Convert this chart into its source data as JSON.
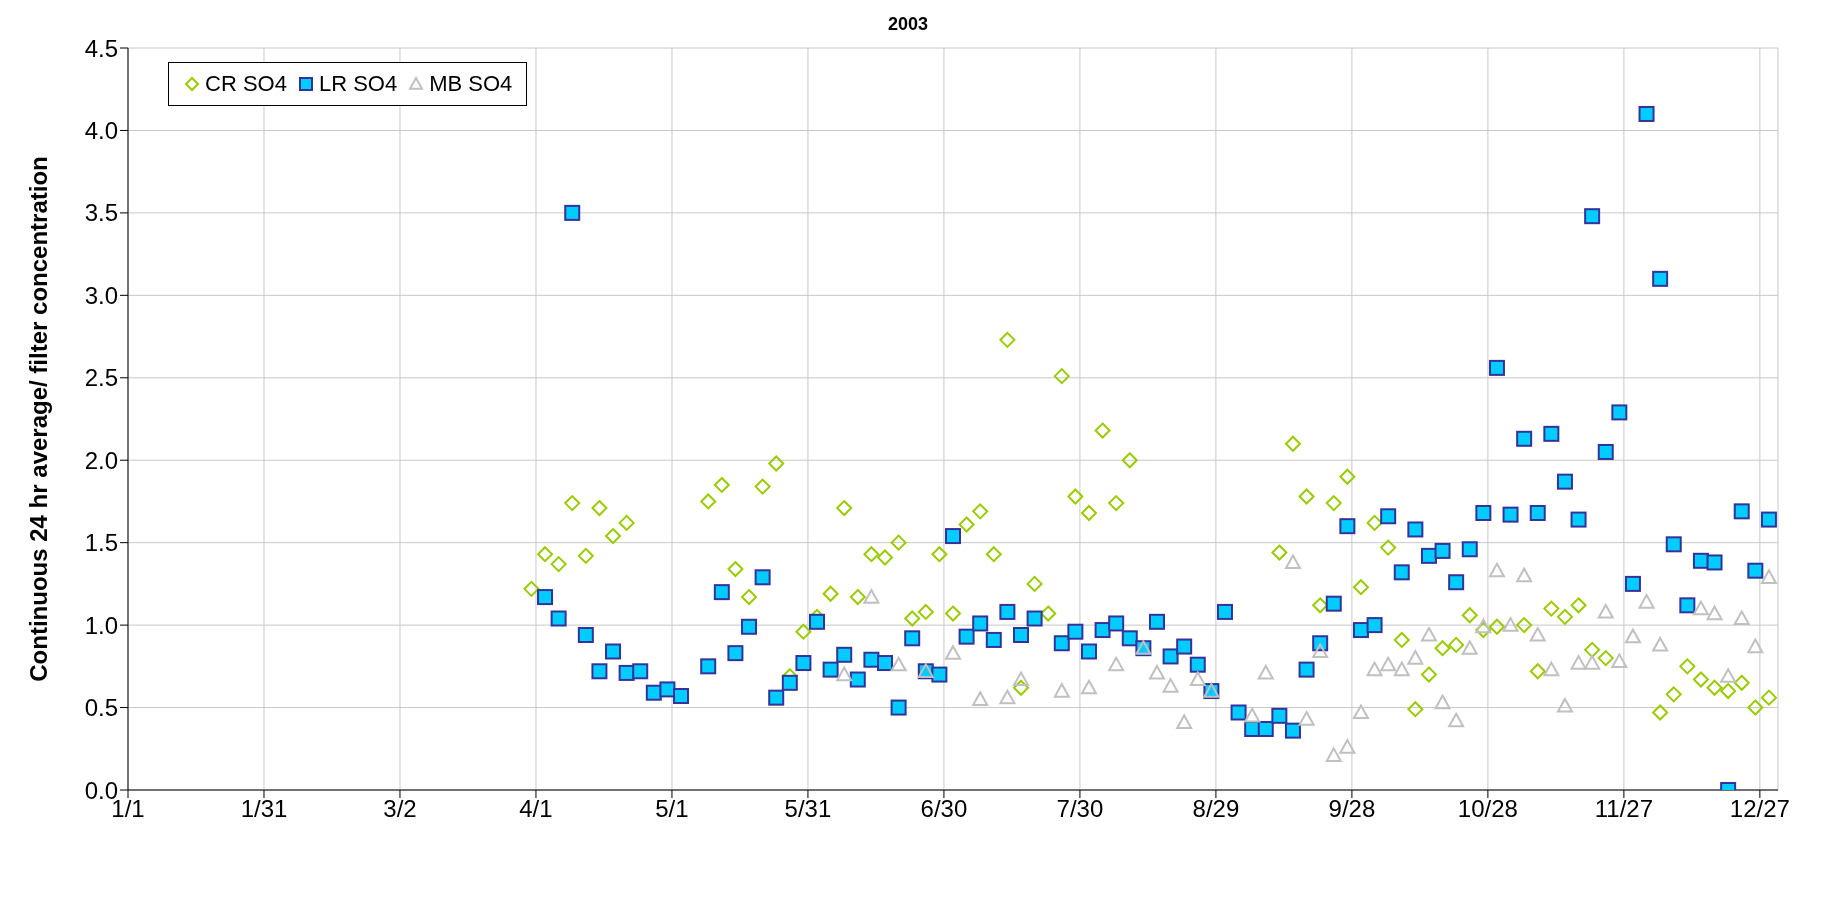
{
  "chart_data": {
    "type": "scatter",
    "title": "2003",
    "ylabel": "Continuous 24 hr average/ filter concentration",
    "xlim": [
      "2003-01-01",
      "2003-12-31"
    ],
    "xticks": [
      {
        "value": "2003-01-01",
        "label": "1/1"
      },
      {
        "value": "2003-01-31",
        "label": "1/31"
      },
      {
        "value": "2003-03-02",
        "label": "3/2"
      },
      {
        "value": "2003-04-01",
        "label": "4/1"
      },
      {
        "value": "2003-05-01",
        "label": "5/1"
      },
      {
        "value": "2003-05-31",
        "label": "5/31"
      },
      {
        "value": "2003-06-30",
        "label": "6/30"
      },
      {
        "value": "2003-07-30",
        "label": "7/30"
      },
      {
        "value": "2003-08-29",
        "label": "8/29"
      },
      {
        "value": "2003-09-28",
        "label": "9/28"
      },
      {
        "value": "2003-10-28",
        "label": "10/28"
      },
      {
        "value": "2003-11-27",
        "label": "11/27"
      },
      {
        "value": "2003-12-27",
        "label": "12/27"
      }
    ],
    "ylim": [
      0,
      4.5
    ],
    "yticks": [
      {
        "value": 0,
        "label": "0.0"
      },
      {
        "value": 0.5,
        "label": "0.5"
      },
      {
        "value": 1,
        "label": "1.0"
      },
      {
        "value": 1.5,
        "label": "1.5"
      },
      {
        "value": 2,
        "label": "2.0"
      },
      {
        "value": 2.5,
        "label": "2.5"
      },
      {
        "value": 3,
        "label": "3.0"
      },
      {
        "value": 3.5,
        "label": "3.5"
      },
      {
        "value": 4,
        "label": "4.0"
      },
      {
        "value": 4.5,
        "label": "4.5"
      }
    ],
    "grid": true,
    "legend": "top left",
    "series": [
      {
        "name": "CR SO4",
        "color": "#99cc00",
        "marker": "diamond",
        "x": [
          "2003-03-31",
          "2003-04-03",
          "2003-04-06",
          "2003-04-09",
          "2003-04-12",
          "2003-04-15",
          "2003-04-18",
          "2003-04-21",
          "2003-05-09",
          "2003-05-12",
          "2003-05-15",
          "2003-05-18",
          "2003-05-21",
          "2003-05-24",
          "2003-05-27",
          "2003-05-30",
          "2003-06-02",
          "2003-06-05",
          "2003-06-08",
          "2003-06-11",
          "2003-06-14",
          "2003-06-17",
          "2003-06-20",
          "2003-06-23",
          "2003-06-26",
          "2003-06-29",
          "2003-07-02",
          "2003-07-05",
          "2003-07-08",
          "2003-07-11",
          "2003-07-14",
          "2003-07-17",
          "2003-07-20",
          "2003-07-23",
          "2003-07-26",
          "2003-07-29",
          "2003-08-01",
          "2003-08-04",
          "2003-08-07",
          "2003-08-10",
          "2003-09-12",
          "2003-09-15",
          "2003-09-18",
          "2003-09-21",
          "2003-09-24",
          "2003-09-27",
          "2003-09-30",
          "2003-10-03",
          "2003-10-06",
          "2003-10-09",
          "2003-10-12",
          "2003-10-15",
          "2003-10-18",
          "2003-10-21",
          "2003-10-24",
          "2003-10-27",
          "2003-10-30",
          "2003-11-05",
          "2003-11-08",
          "2003-11-11",
          "2003-11-14",
          "2003-11-17",
          "2003-11-20",
          "2003-11-23",
          "2003-12-05",
          "2003-12-08",
          "2003-12-11",
          "2003-12-14",
          "2003-12-17",
          "2003-12-20",
          "2003-12-23",
          "2003-12-26",
          "2003-12-29"
        ],
        "values": [
          1.22,
          1.43,
          1.37,
          1.74,
          1.42,
          1.71,
          1.54,
          1.62,
          1.75,
          1.85,
          1.34,
          1.17,
          1.84,
          1.98,
          0.69,
          0.96,
          1.05,
          1.19,
          1.71,
          1.17,
          1.43,
          1.41,
          1.5,
          1.04,
          1.08,
          1.43,
          1.07,
          1.61,
          1.69,
          1.43,
          2.73,
          0.62,
          1.25,
          1.07,
          2.51,
          1.78,
          1.68,
          2.18,
          1.74,
          2.0,
          1.44,
          2.1,
          1.78,
          1.12,
          1.74,
          1.9,
          1.23,
          1.62,
          1.47,
          0.91,
          0.49,
          0.7,
          0.86,
          0.88,
          1.06,
          0.97,
          0.99,
          1.0,
          0.72,
          1.1,
          1.05,
          1.12,
          0.85,
          0.8,
          0.47,
          0.58,
          0.75,
          0.67,
          0.62,
          0.6,
          0.65,
          0.5,
          0.56
        ]
      },
      {
        "name": "LR SO4",
        "color": "#00ccff",
        "marker": "square",
        "x": [
          "2003-04-03",
          "2003-04-06",
          "2003-04-09",
          "2003-04-12",
          "2003-04-15",
          "2003-04-18",
          "2003-04-21",
          "2003-04-24",
          "2003-04-27",
          "2003-04-30",
          "2003-05-03",
          "2003-05-09",
          "2003-05-12",
          "2003-05-15",
          "2003-05-18",
          "2003-05-21",
          "2003-05-24",
          "2003-05-27",
          "2003-05-30",
          "2003-06-02",
          "2003-06-05",
          "2003-06-08",
          "2003-06-11",
          "2003-06-14",
          "2003-06-17",
          "2003-06-20",
          "2003-06-23",
          "2003-06-26",
          "2003-06-29",
          "2003-07-02",
          "2003-07-05",
          "2003-07-08",
          "2003-07-11",
          "2003-07-14",
          "2003-07-17",
          "2003-07-20",
          "2003-07-26",
          "2003-07-29",
          "2003-08-01",
          "2003-08-04",
          "2003-08-07",
          "2003-08-10",
          "2003-08-13",
          "2003-08-16",
          "2003-08-19",
          "2003-08-22",
          "2003-08-25",
          "2003-08-28",
          "2003-08-31",
          "2003-09-03",
          "2003-09-06",
          "2003-09-09",
          "2003-09-12",
          "2003-09-15",
          "2003-09-18",
          "2003-09-21",
          "2003-09-24",
          "2003-09-27",
          "2003-09-30",
          "2003-10-03",
          "2003-10-06",
          "2003-10-09",
          "2003-10-12",
          "2003-10-15",
          "2003-10-18",
          "2003-10-21",
          "2003-10-24",
          "2003-10-27",
          "2003-10-30",
          "2003-11-02",
          "2003-11-05",
          "2003-11-08",
          "2003-11-11",
          "2003-11-14",
          "2003-11-17",
          "2003-11-20",
          "2003-11-23",
          "2003-11-26",
          "2003-11-29",
          "2003-12-02",
          "2003-12-05",
          "2003-12-08",
          "2003-12-11",
          "2003-12-14",
          "2003-12-17",
          "2003-12-20",
          "2003-12-23",
          "2003-12-26",
          "2003-12-29"
        ],
        "values": [
          1.17,
          1.04,
          3.5,
          0.94,
          0.72,
          0.84,
          0.71,
          0.72,
          0.59,
          0.61,
          0.57,
          0.75,
          1.2,
          0.83,
          0.99,
          1.29,
          0.56,
          0.65,
          0.77,
          1.02,
          0.73,
          0.82,
          0.67,
          0.79,
          0.77,
          0.5,
          0.92,
          0.72,
          0.7,
          1.54,
          0.93,
          1.01,
          0.91,
          1.08,
          0.94,
          1.04,
          0.89,
          0.96,
          0.84,
          0.97,
          1.01,
          0.92,
          0.86,
          1.02,
          0.81,
          0.87,
          0.76,
          0.6,
          1.08,
          0.47,
          0.37,
          0.37,
          0.45,
          0.36,
          0.73,
          0.89,
          1.13,
          1.6,
          0.97,
          1.0,
          1.66,
          1.32,
          1.58,
          1.42,
          1.45,
          1.26,
          1.46,
          1.68,
          2.56,
          1.67,
          2.13,
          1.68,
          2.16,
          1.87,
          1.64,
          3.48,
          2.05,
          2.29,
          1.25,
          4.1,
          3.1,
          1.49,
          1.12,
          1.39,
          1.38,
          0.0,
          1.69,
          1.33,
          1.64
        ]
      },
      {
        "name": "MB SO4",
        "color": "#c0c0c0",
        "marker": "triangle",
        "x": [
          "2003-06-08",
          "2003-06-14",
          "2003-06-20",
          "2003-06-26",
          "2003-07-02",
          "2003-07-08",
          "2003-07-14",
          "2003-07-17",
          "2003-07-26",
          "2003-08-01",
          "2003-08-07",
          "2003-08-13",
          "2003-08-16",
          "2003-08-19",
          "2003-08-22",
          "2003-08-25",
          "2003-08-28",
          "2003-09-06",
          "2003-09-09",
          "2003-09-15",
          "2003-09-18",
          "2003-09-21",
          "2003-09-24",
          "2003-09-27",
          "2003-09-30",
          "2003-10-03",
          "2003-10-06",
          "2003-10-09",
          "2003-10-12",
          "2003-10-15",
          "2003-10-18",
          "2003-10-21",
          "2003-10-24",
          "2003-10-27",
          "2003-10-30",
          "2003-11-02",
          "2003-11-05",
          "2003-11-08",
          "2003-11-11",
          "2003-11-14",
          "2003-11-17",
          "2003-11-20",
          "2003-11-23",
          "2003-11-26",
          "2003-11-29",
          "2003-12-02",
          "2003-12-05",
          "2003-12-14",
          "2003-12-17",
          "2003-12-20",
          "2003-12-23",
          "2003-12-26",
          "2003-12-29"
        ],
        "values": [
          0.7,
          1.17,
          0.76,
          0.72,
          0.83,
          0.55,
          0.56,
          0.67,
          0.6,
          0.62,
          0.76,
          0.86,
          0.71,
          0.63,
          0.41,
          0.67,
          0.6,
          0.45,
          0.71,
          1.38,
          0.43,
          0.84,
          0.21,
          0.26,
          0.47,
          0.73,
          0.76,
          0.73,
          0.8,
          0.94,
          0.53,
          0.42,
          0.86,
          0.99,
          1.33,
          1.0,
          1.3,
          0.94,
          0.73,
          0.51,
          0.77,
          0.77,
          1.08,
          0.78,
          0.93,
          1.14,
          0.88,
          1.1,
          1.07,
          0.69,
          1.04,
          0.87,
          1.29
        ]
      }
    ]
  }
}
